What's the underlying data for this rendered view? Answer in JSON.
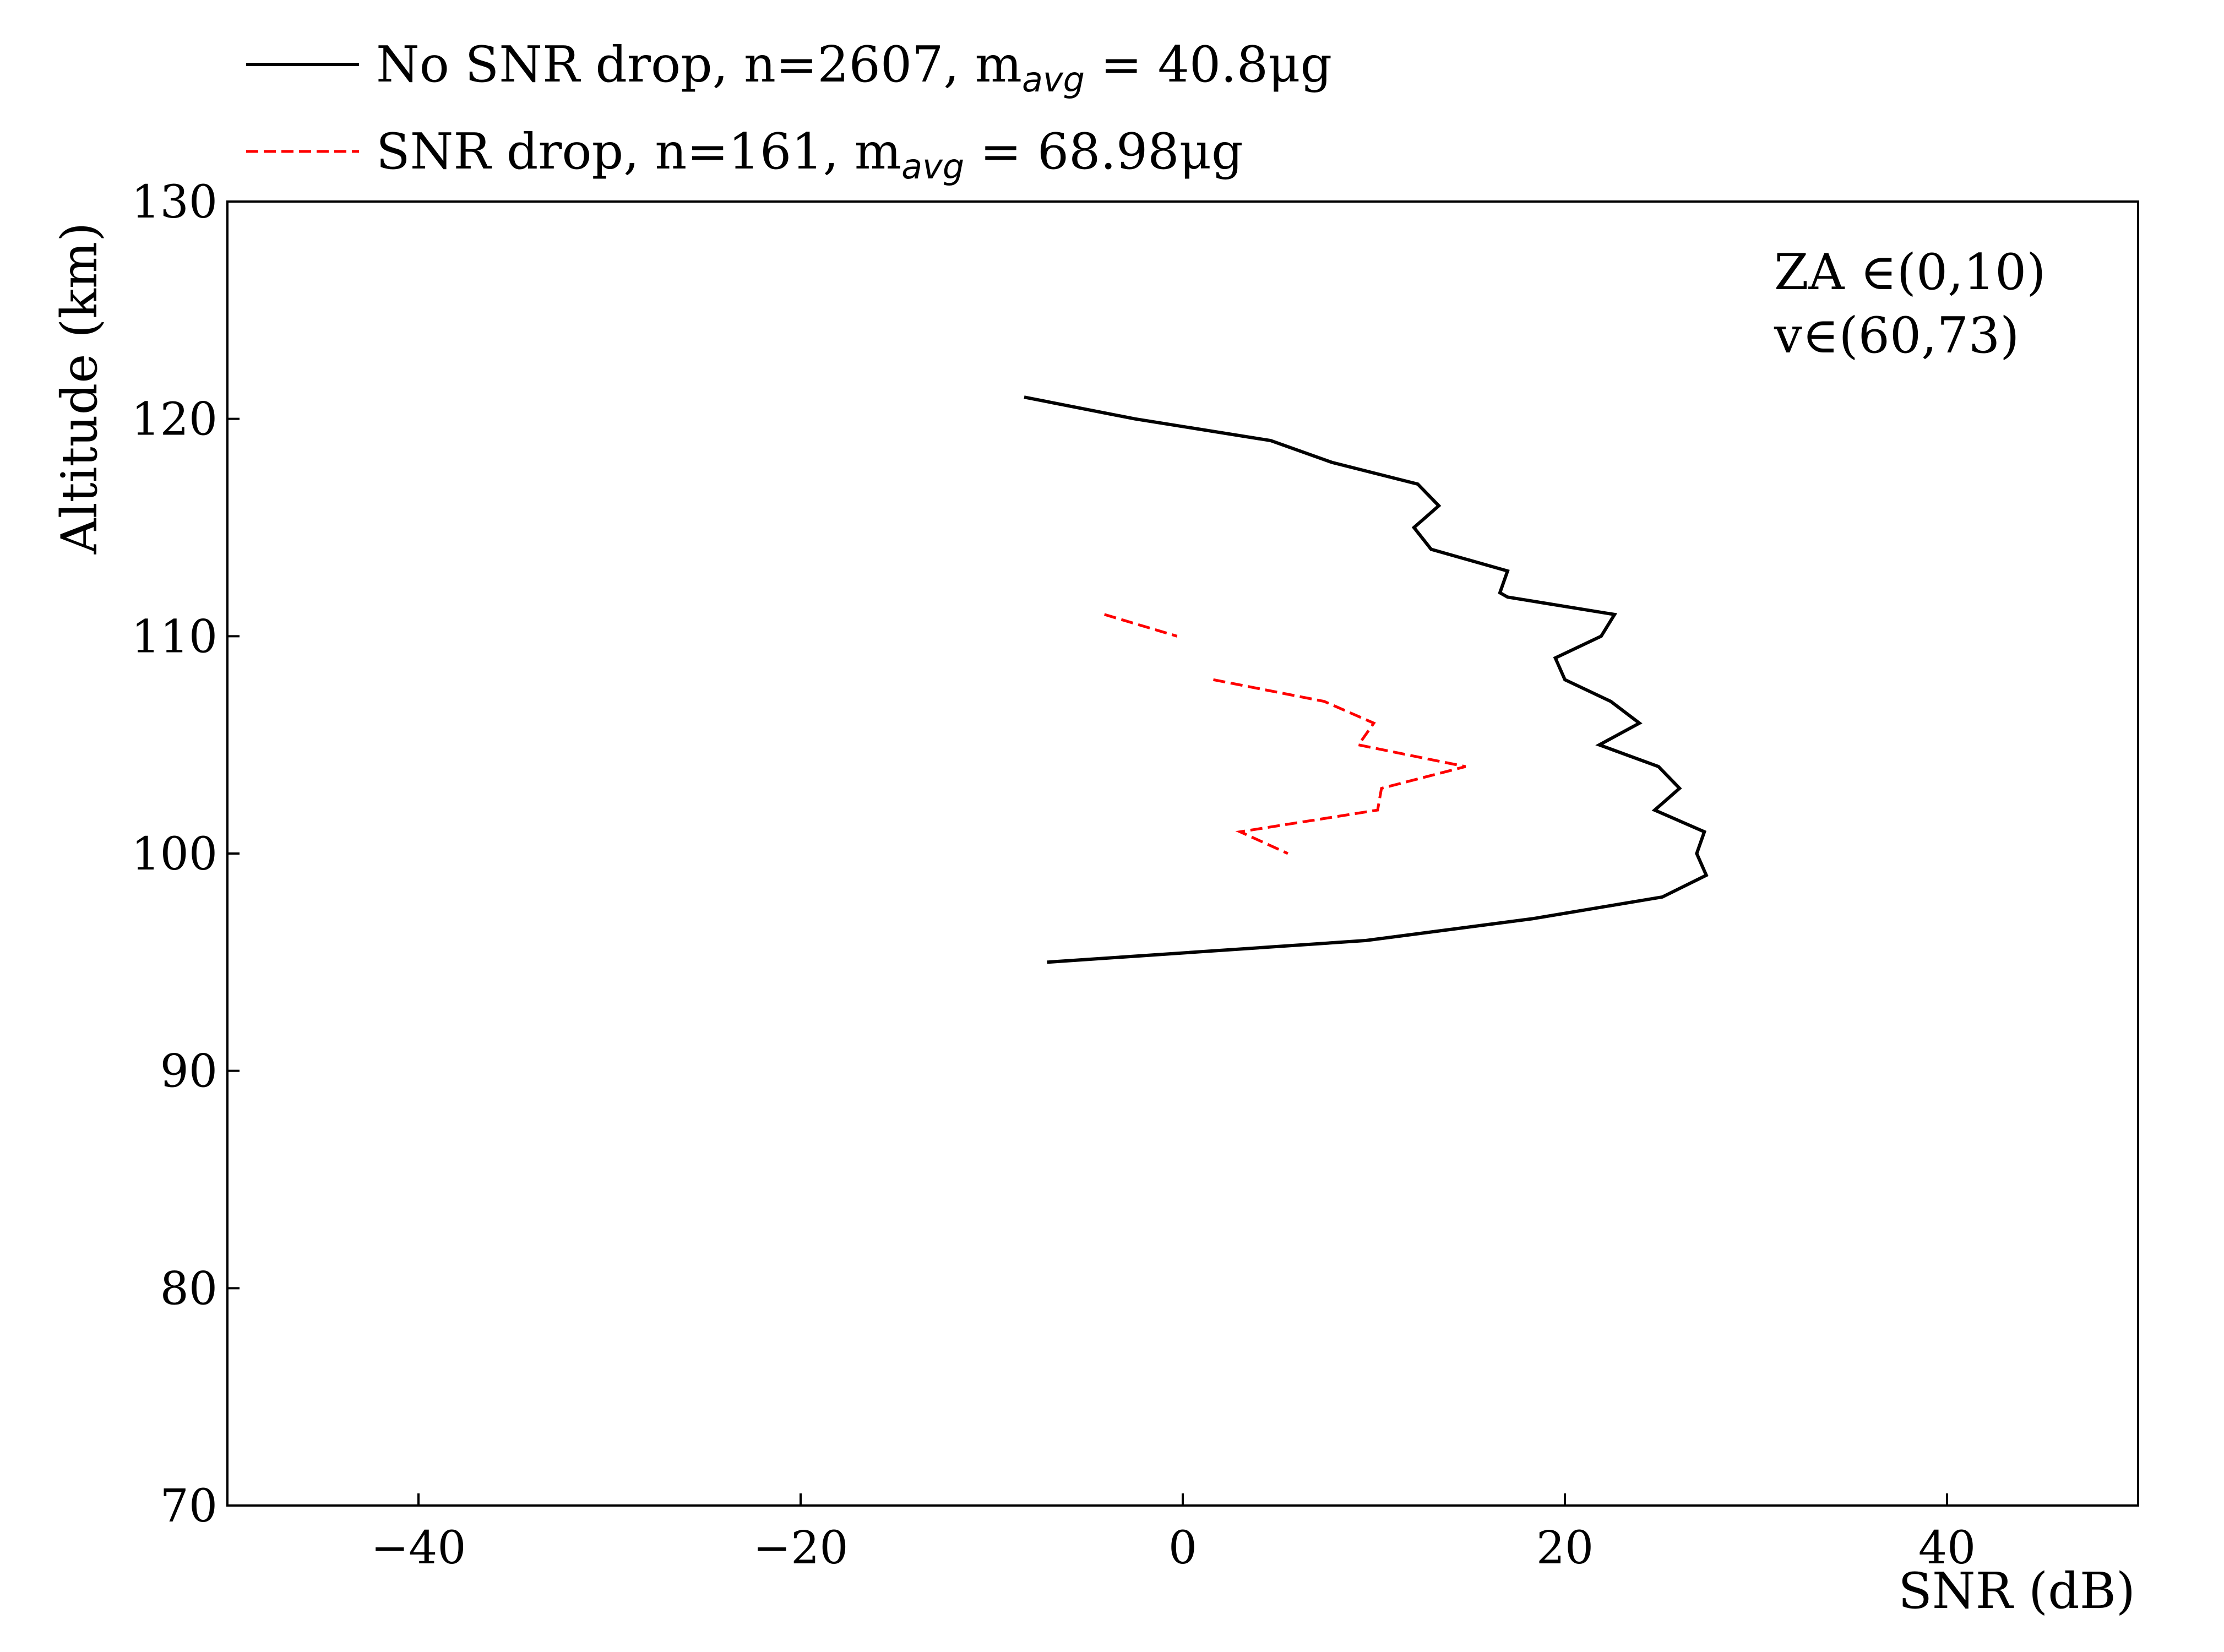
{
  "chart_data": {
    "type": "line",
    "xlabel": "SNR (dB)",
    "ylabel": "Altitude (km)",
    "xlim": [
      -50,
      50
    ],
    "ylim": [
      70,
      130
    ],
    "xticks": [
      -40,
      -20,
      0,
      20,
      40
    ],
    "xtick_labels": [
      "−40",
      "−20",
      "0",
      "20",
      "40"
    ],
    "yticks": [
      70,
      80,
      90,
      100,
      110,
      120,
      130
    ],
    "ytick_labels": [
      "70",
      "80",
      "90",
      "100",
      "110",
      "120",
      "130"
    ],
    "grid": false,
    "legend_position": "top-left, above plot",
    "annotation": [
      "ZA ∈(0,10)",
      "v∈(60,73)"
    ],
    "series": [
      {
        "legend_text": "No SNR drop,  n=2607,  m",
        "legend_sub": "avg",
        "legend_suffix": " = 40.8μg",
        "color": "#000000",
        "style": "solid",
        "points": [
          [
            -8.3,
            121
          ],
          [
            -2.5,
            120
          ],
          [
            4.6,
            119
          ],
          [
            7.8,
            118
          ],
          [
            12.3,
            117
          ],
          [
            13.4,
            116
          ],
          [
            12.1,
            115
          ],
          [
            13.0,
            114
          ],
          [
            17.0,
            113
          ],
          [
            16.6,
            112
          ],
          [
            17.0,
            111.8
          ],
          [
            22.6,
            111
          ],
          [
            21.9,
            110
          ],
          [
            19.5,
            109
          ],
          [
            20.0,
            108
          ],
          [
            22.4,
            107
          ],
          [
            23.9,
            106
          ],
          [
            21.8,
            105
          ],
          [
            24.9,
            104
          ],
          [
            26.0,
            103
          ],
          [
            24.7,
            102
          ],
          [
            27.3,
            101
          ],
          [
            26.9,
            100
          ],
          [
            27.4,
            99
          ],
          [
            25.1,
            98
          ],
          [
            18.3,
            97
          ],
          [
            9.6,
            96
          ],
          [
            -7.1,
            95
          ]
        ]
      },
      {
        "legend_text": "SNR drop,  n=161,  m",
        "legend_sub": "avg",
        "legend_suffix": " = 68.98μg",
        "color": "#ff0000",
        "style": "dashed",
        "segments": [
          [
            [
              -4.1,
              111
            ],
            [
              -0.3,
              110
            ]
          ],
          [
            [
              1.6,
              108
            ],
            [
              7.4,
              107
            ],
            [
              10.0,
              106
            ],
            [
              9.2,
              105
            ],
            [
              14.8,
              104
            ],
            [
              10.4,
              103
            ],
            [
              10.2,
              102
            ],
            [
              3.0,
              101
            ],
            [
              5.5,
              100
            ]
          ]
        ]
      }
    ]
  }
}
